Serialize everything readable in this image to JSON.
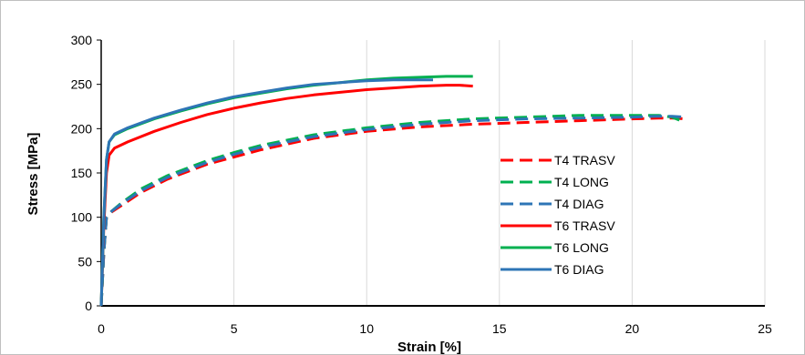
{
  "chart_data": {
    "type": "line",
    "title": "",
    "xlabel": "Strain [%]",
    "ylabel": "Stress [MPa]",
    "xlim": [
      0,
      25
    ],
    "ylim": [
      0,
      300
    ],
    "xticks": [
      0,
      5,
      10,
      15,
      20,
      25
    ],
    "yticks": [
      0,
      50,
      100,
      150,
      200,
      250,
      300
    ],
    "grid": "vertical",
    "legend_position": "right-inside",
    "series": [
      {
        "name": "T4 TRASV",
        "color": "#ff0000",
        "dash": "dashed",
        "x": [
          0,
          0.1,
          0.2,
          0.4,
          0.8,
          1.5,
          2.5,
          4,
          5,
          6,
          8,
          10,
          12,
          14,
          16,
          18,
          20,
          21,
          21.5,
          22
        ],
        "y": [
          0,
          60,
          100,
          106,
          114,
          128,
          143,
          160,
          168,
          176,
          189,
          197,
          202,
          205,
          207,
          209,
          211,
          212,
          212,
          211
        ]
      },
      {
        "name": "T4 LONG",
        "color": "#00b050",
        "dash": "dashed",
        "x": [
          0,
          0.1,
          0.2,
          0.4,
          0.8,
          1.5,
          2.5,
          4,
          5,
          6,
          8,
          10,
          12,
          14,
          16,
          18,
          20,
          21,
          21.5,
          22
        ],
        "y": [
          0,
          60,
          100,
          107,
          117,
          132,
          147,
          164,
          173,
          181,
          193,
          201,
          207,
          211,
          213,
          215,
          215,
          215,
          213,
          207
        ]
      },
      {
        "name": "T4 DIAG",
        "color": "#2e75b6",
        "dash": "dashed",
        "x": [
          0,
          0.1,
          0.2,
          0.4,
          0.8,
          1.5,
          2.5,
          4,
          5,
          6,
          8,
          10,
          12,
          14,
          16,
          18,
          20,
          21,
          21.5,
          22
        ],
        "y": [
          0,
          60,
          100,
          107,
          116,
          130,
          145,
          162,
          171,
          179,
          191,
          199,
          205,
          209,
          211,
          212,
          213,
          214,
          214,
          213
        ]
      },
      {
        "name": "T6 TRASV",
        "color": "#ff0000",
        "dash": "solid",
        "x": [
          0,
          0.1,
          0.2,
          0.3,
          0.5,
          1,
          2,
          3,
          4,
          5,
          6,
          7,
          8,
          9,
          10,
          11,
          12,
          13,
          13.5,
          14
        ],
        "y": [
          0,
          90,
          150,
          170,
          178,
          185,
          197,
          207,
          216,
          223,
          229,
          234,
          238,
          241,
          244,
          246,
          248,
          249,
          249,
          248
        ]
      },
      {
        "name": "T6 LONG",
        "color": "#00b050",
        "dash": "solid",
        "x": [
          0,
          0.1,
          0.2,
          0.3,
          0.5,
          1,
          2,
          3,
          4,
          5,
          6,
          7,
          8,
          9,
          10,
          11,
          12,
          13,
          13.5,
          14
        ],
        "y": [
          0,
          100,
          165,
          185,
          193,
          200,
          211,
          220,
          228,
          235,
          240,
          245,
          249,
          252,
          255,
          257,
          258,
          259,
          259,
          259
        ]
      },
      {
        "name": "T6 DIAG",
        "color": "#2e75b6",
        "dash": "solid",
        "x": [
          0,
          0.1,
          0.2,
          0.3,
          0.5,
          1,
          2,
          3,
          4,
          5,
          6,
          7,
          8,
          9,
          10,
          11,
          12,
          12.5
        ],
        "y": [
          0,
          100,
          165,
          185,
          194,
          201,
          212,
          221,
          229,
          236,
          241,
          246,
          250,
          252,
          254,
          255,
          255,
          255
        ]
      }
    ]
  }
}
